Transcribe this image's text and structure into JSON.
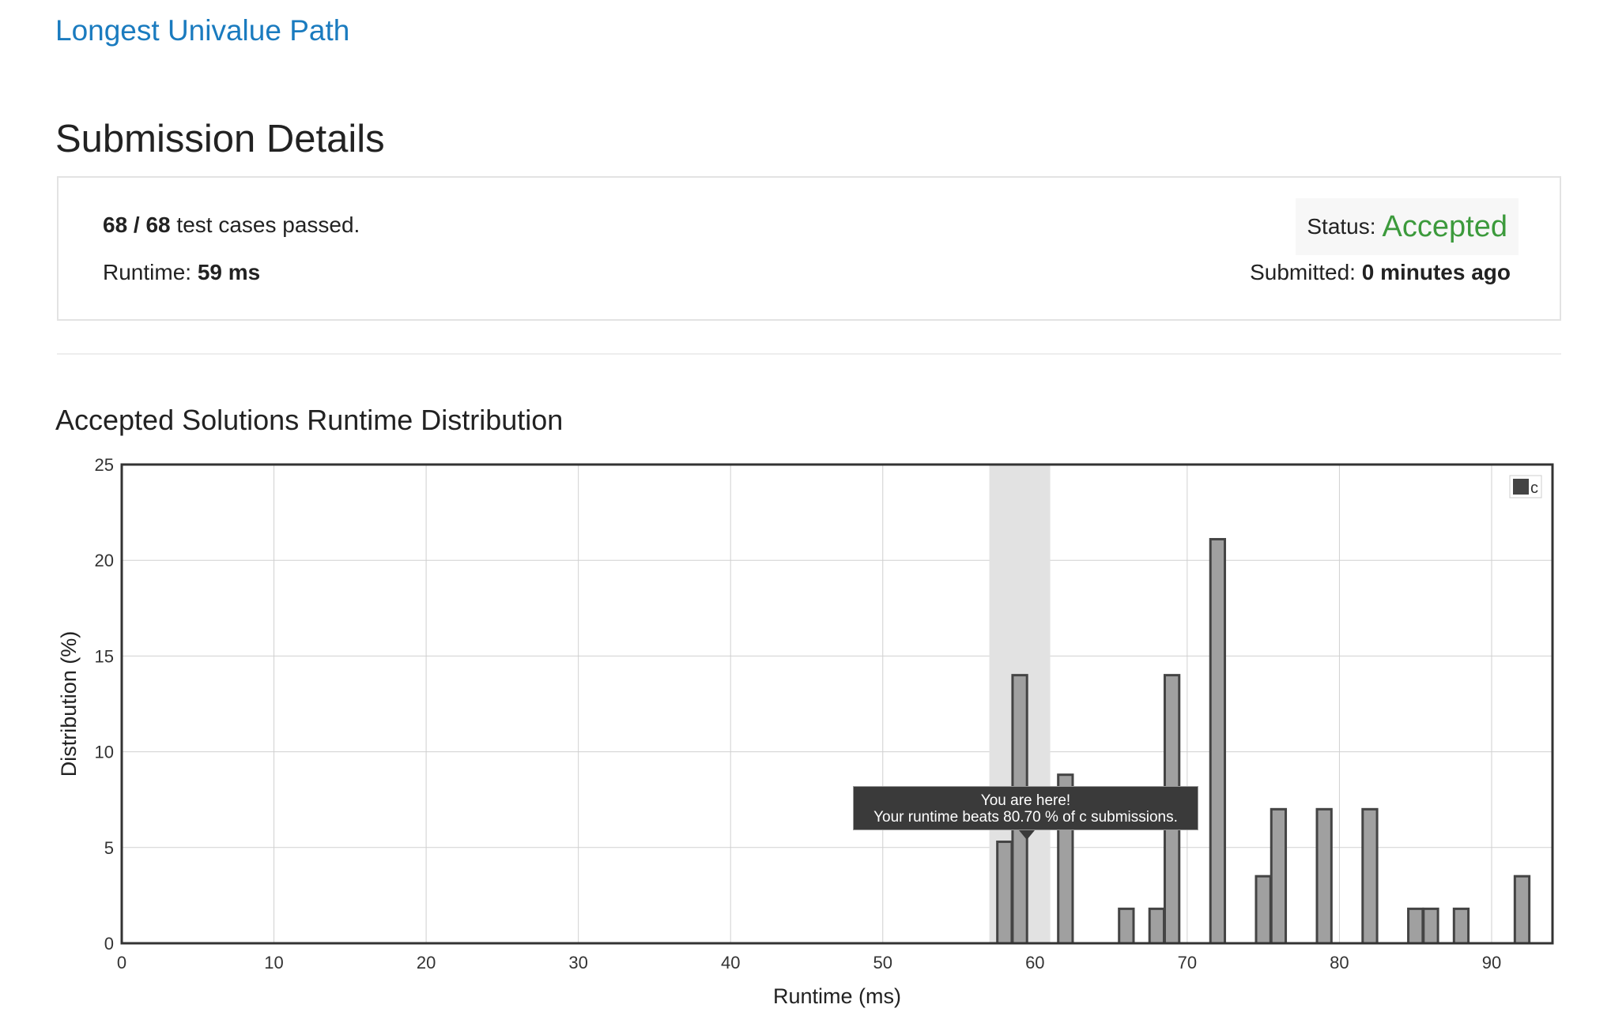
{
  "problem": {
    "title": "Longest Univalue Path"
  },
  "header": {
    "title": "Submission Details"
  },
  "details": {
    "passed": "68 / 68",
    "passed_suffix": "test cases passed.",
    "runtime_label": "Runtime:",
    "runtime_value": "59 ms",
    "status_label": "Status:",
    "status_value": "Accepted",
    "submitted_label": "Submitted:",
    "submitted_value": "0 minutes ago"
  },
  "distribution": {
    "title": "Accepted Solutions Runtime Distribution"
  },
  "tooltip": {
    "line1": "You are here!",
    "line2": "Your runtime beats 80.70 % of c submissions."
  },
  "colors": {
    "link": "#1a7bbf",
    "accepted": "#3c9a3c",
    "bar_fill": "#a0a0a0",
    "bar_stroke": "#444444",
    "highlight": "#e2e2e2"
  },
  "chart_data": {
    "type": "bar",
    "xlabel": "Runtime (ms)",
    "ylabel": "Distribution (%)",
    "xlim": [
      0,
      94
    ],
    "ylim": [
      0,
      25
    ],
    "xticks": [
      0,
      10,
      20,
      30,
      40,
      50,
      60,
      70,
      80,
      90
    ],
    "yticks": [
      0,
      5,
      10,
      15,
      20,
      25
    ],
    "grid": true,
    "legend_position": "top-right",
    "series": [
      {
        "name": "c",
        "x": [
          58,
          59,
          62,
          66,
          68,
          69,
          72,
          75,
          76,
          79,
          82,
          85,
          86,
          88,
          92
        ],
        "values": [
          5.3,
          14.0,
          8.8,
          1.8,
          1.8,
          14.0,
          21.1,
          3.5,
          7.0,
          7.0,
          7.0,
          1.8,
          1.8,
          1.8,
          3.5
        ]
      }
    ],
    "highlight_range": [
      57,
      61
    ],
    "annotation": "You are here!"
  }
}
